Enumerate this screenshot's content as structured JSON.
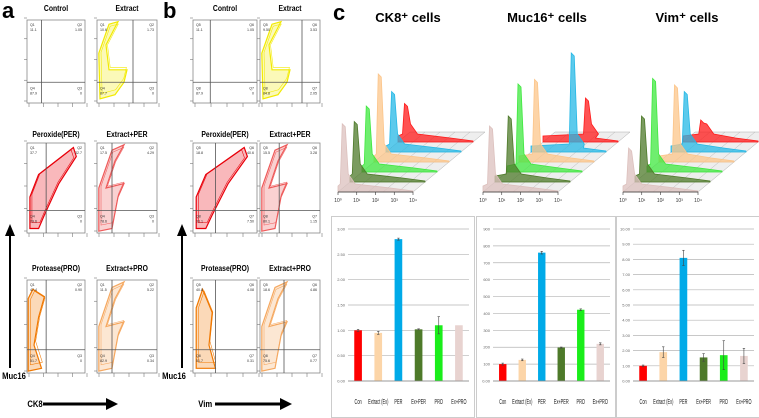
{
  "panel_labels": {
    "a": "a",
    "b": "b",
    "c": "c"
  },
  "panel_a": {
    "y_axis_label": "Muc16",
    "x_axis_label": "CK8",
    "plots": [
      {
        "title": "Control",
        "color": "#ffe800",
        "quadrants": {
          "Q1": "11.1",
          "Q2": "1.05",
          "Q4": "87.9",
          "Q3": "0"
        }
      },
      {
        "title": "Extract",
        "color": "#f2ea00",
        "quadrants": {
          "Q1": "10.6",
          "Q2": "1.73",
          "Q4": "87.7",
          "Q3": "0"
        }
      },
      {
        "title": "Peroxide(PER)",
        "color": "#e8000a",
        "quadrants": {
          "Q1": "37.7",
          "Q2": "32.7",
          "Q4": "29.6",
          "Q3": "0"
        }
      },
      {
        "title": "Extract+PER",
        "color": "#ee5a5a",
        "quadrants": {
          "Q1": "17.5",
          "Q2": "4.29",
          "Q4": "78.6",
          "Q3": "0"
        }
      },
      {
        "title": "Protease(PRO)",
        "color": "#f07800",
        "quadrants": {
          "Q1": "47.4",
          "Q2": "0.90",
          "Q4": "51.7",
          "Q3": "0"
        }
      },
      {
        "title": "Extract+PRO",
        "color": "#f5a860",
        "quadrants": {
          "Q1": "11.5",
          "Q2": "5.22",
          "Q4": "82.9",
          "Q3": "0.34"
        }
      }
    ]
  },
  "panel_b": {
    "y_axis_label": "Muc16",
    "x_axis_label": "Vim",
    "plots": [
      {
        "title": "Control",
        "color": "#ffe800",
        "quadrants": {
          "Q5": "11.1",
          "Q6": "1.05",
          "Q8": "87.9",
          "Q7": "0"
        }
      },
      {
        "title": "Extract",
        "color": "#f2ea00",
        "quadrants": {
          "Q5": "9.50",
          "Q6": "3.53",
          "Q8": "84.8",
          "Q7": "2.05"
        }
      },
      {
        "title": "Peroxide(PER)",
        "color": "#e8000a",
        "quadrants": {
          "Q5": "18.8",
          "Q6": "40.6",
          "Q8": "33.1",
          "Q7": "7.50"
        }
      },
      {
        "title": "Extract+PER",
        "color": "#ee5a5a",
        "quadrants": {
          "Q5": "15.5",
          "Q6": "3.28",
          "Q8": "80.1",
          "Q7": "1.15"
        }
      },
      {
        "title": "Protease(PRO)",
        "color": "#f07800",
        "quadrants": {
          "Q5": "40.8",
          "Q6": "4.08",
          "Q8": "51.7",
          "Q7": "0.31"
        }
      },
      {
        "title": "Extract+PRO",
        "color": "#f5a860",
        "quadrants": {
          "Q5": "18.6",
          "Q6": "4.86",
          "Q8": "75.6",
          "Q7": "0.77"
        }
      }
    ]
  },
  "panel_c": {
    "histograms": [
      {
        "title": "CK8⁺ cells",
        "x_ticks": [
          "10⁰",
          "10¹",
          "10²",
          "10³",
          "10⁴"
        ]
      },
      {
        "title": "Muc16⁺ cells",
        "x_ticks": [
          "10⁰",
          "10¹",
          "10²",
          "10³",
          "10⁴"
        ]
      },
      {
        "title": "Vim⁺ cells",
        "x_ticks": [
          "10⁰",
          "10¹",
          "10²",
          "10³",
          "10⁴"
        ]
      }
    ],
    "series_colors": [
      "#ff1a1a",
      "#fcc58a",
      "#25b8e6",
      "#4e7a2a",
      "#3fe83f",
      "#dcc0bd"
    ]
  },
  "chart_data": [
    {
      "type": "bar",
      "title": "CK8⁺ cells",
      "categories": [
        "Con",
        "Extract (Ex)",
        "PER",
        "Ex+PER",
        "PRO",
        "Ex+PRO"
      ],
      "values": [
        1.0,
        0.95,
        2.8,
        1.02,
        1.1,
        1.1
      ],
      "errors": [
        0.02,
        0.03,
        0.02,
        0.01,
        0.17,
        0.0
      ],
      "colors": [
        "#ff0000",
        "#fcd5a8",
        "#00aae8",
        "#4e7a2a",
        "#1aee1a",
        "#e8d3d0"
      ],
      "ylim": [
        0,
        3
      ],
      "yticks": [
        "0.00",
        "0.50",
        "1.00",
        "1.50",
        "2.00",
        "2.50",
        "3.00"
      ],
      "grid": true,
      "xlabel": "",
      "ylabel": ""
    },
    {
      "type": "bar",
      "title": "Muc16⁺ cells",
      "categories": [
        "Con",
        "Extract (Ex)",
        "PER",
        "Ex+PER",
        "PRO",
        "Ex+PRO"
      ],
      "values": [
        100,
        125,
        760,
        198,
        422,
        220
      ],
      "errors": [
        6,
        5,
        8,
        3,
        5,
        6
      ],
      "colors": [
        "#ff0000",
        "#fcd5a8",
        "#00aae8",
        "#4e7a2a",
        "#1aee1a",
        "#e8d3d0"
      ],
      "ylim": [
        0,
        900
      ],
      "yticks": [
        "0.00",
        "100",
        "200",
        "300",
        "400",
        "500",
        "600",
        "700",
        "800",
        "900"
      ],
      "grid": true,
      "xlabel": "",
      "ylabel": ""
    },
    {
      "type": "bar",
      "title": "Vim⁺ cells",
      "categories": [
        "Con",
        "Extract (Ex)",
        "PER",
        "Ex+PER",
        "PRO",
        "Ex+PRO"
      ],
      "values": [
        1.0,
        1.9,
        8.1,
        1.55,
        1.7,
        1.65
      ],
      "errors": [
        0.05,
        0.35,
        0.5,
        0.25,
        0.95,
        0.5
      ],
      "colors": [
        "#ff0000",
        "#fcd5a8",
        "#00aae8",
        "#4e7a2a",
        "#1aee1a",
        "#e8d3d0"
      ],
      "ylim": [
        0,
        10
      ],
      "yticks": [
        "0.00",
        "1.00",
        "2.00",
        "3.00",
        "4.00",
        "5.00",
        "6.00",
        "7.00",
        "8.00",
        "9.00",
        "10.00"
      ],
      "grid": true,
      "xlabel": "",
      "ylabel": ""
    }
  ]
}
